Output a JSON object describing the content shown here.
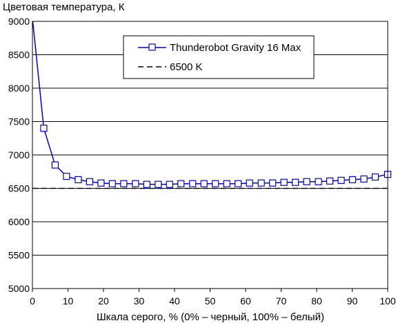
{
  "chart_data": {
    "type": "line",
    "title": "",
    "ylabel": "Цветовая температура, К",
    "xlabel": "Шкала серого, % (0% – черный, 100% – белый)",
    "xlim": [
      0,
      100
    ],
    "ylim": [
      5000,
      9000
    ],
    "xticks": [
      0,
      10,
      20,
      30,
      40,
      50,
      60,
      70,
      80,
      90,
      100
    ],
    "yticks": [
      5000,
      5500,
      6000,
      6500,
      7000,
      7500,
      8000,
      8500,
      9000
    ],
    "grid": "horizontal",
    "legend": "top-center",
    "series": [
      {
        "name": "Thunderobot Gravity 16 Max",
        "color": "#0000cc",
        "marker": "open-square",
        "x": [
          0,
          3.2,
          6.4,
          9.6,
          12.9,
          16.1,
          19.3,
          22.5,
          25.7,
          29.0,
          32.2,
          35.4,
          38.6,
          41.8,
          45.1,
          48.3,
          51.5,
          54.7,
          57.9,
          61.1,
          64.4,
          67.6,
          70.8,
          74.0,
          77.2,
          80.5,
          83.7,
          86.9,
          90.1,
          93.3,
          96.5,
          100
        ],
        "y": [
          9050,
          7400,
          6850,
          6680,
          6630,
          6600,
          6580,
          6570,
          6570,
          6570,
          6560,
          6560,
          6560,
          6570,
          6570,
          6570,
          6570,
          6570,
          6570,
          6580,
          6580,
          6580,
          6590,
          6590,
          6600,
          6600,
          6610,
          6620,
          6630,
          6640,
          6670,
          6710
        ]
      },
      {
        "name": "6500 K",
        "color": "#000000",
        "style": "dashed",
        "x": [
          0,
          100
        ],
        "y": [
          6500,
          6500
        ]
      }
    ]
  }
}
